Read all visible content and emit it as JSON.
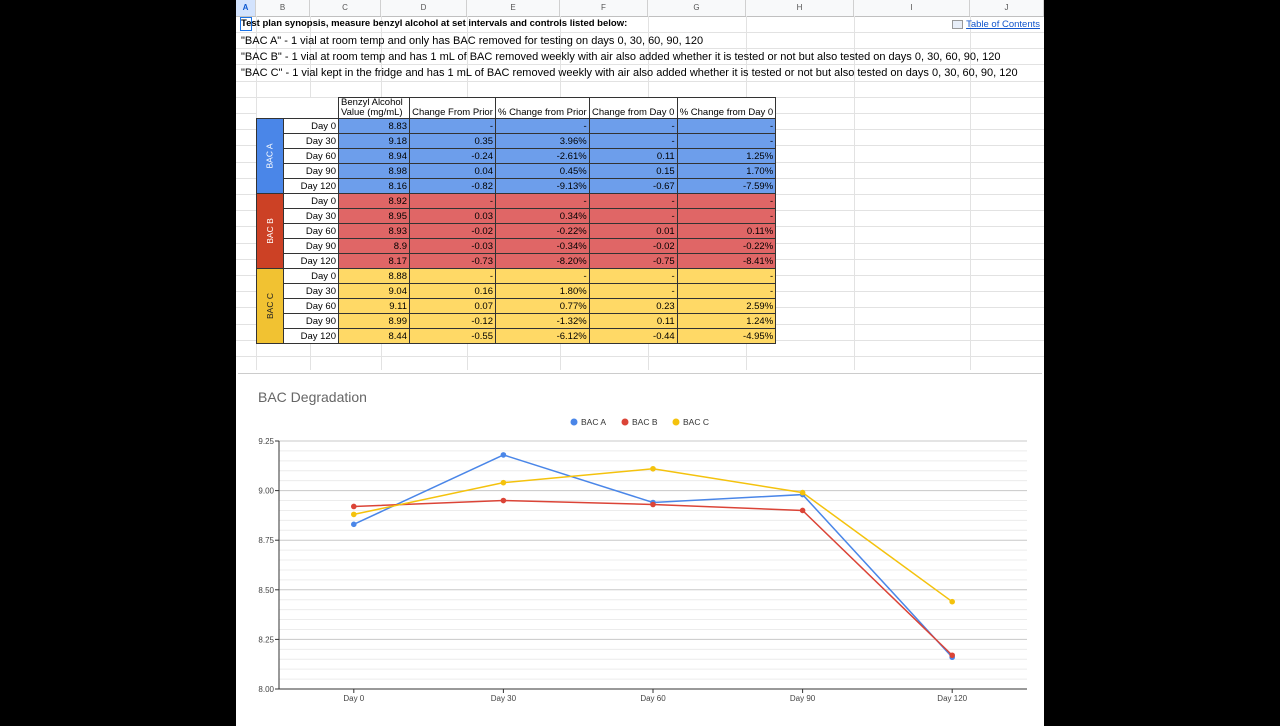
{
  "columns": [
    "A",
    "B",
    "C",
    "D",
    "E",
    "F",
    "G",
    "H",
    "I",
    "J"
  ],
  "intro": {
    "lines": [
      "Test plan synopsis, measure benzyl alcohol at set intervals and controls listed below:",
      "\"BAC A\" - 1 vial at room temp and only has BAC removed for testing on days 0, 30, 60, 90, 120",
      "\"BAC B\" - 1 vial at room temp and has 1 mL of BAC removed weekly with air also added whether it is tested or not but also tested on days 0, 30, 60, 90, 120",
      "\"BAC C\" - 1 vial kept in the fridge and has 1 mL of BAC removed weekly with air also added whether it is tested or not but also tested on days 0, 30, 60, 90, 120"
    ],
    "toc_link": "Table of Contents"
  },
  "table": {
    "headers": [
      "Benzyl Alcohol Value (mg/mL)",
      "Change From Prior",
      "% Change from Prior",
      "Change from Day 0",
      "% Change from Day 0"
    ],
    "groups": [
      {
        "label": "BAC A",
        "rows": [
          [
            "Day 0",
            "8.83",
            "-",
            "-",
            "-",
            "-"
          ],
          [
            "Day 30",
            "9.18",
            "0.35",
            "3.96%",
            "-",
            "-"
          ],
          [
            "Day 60",
            "8.94",
            "-0.24",
            "-2.61%",
            "0.11",
            "1.25%"
          ],
          [
            "Day 90",
            "8.98",
            "0.04",
            "0.45%",
            "0.15",
            "1.70%"
          ],
          [
            "Day 120",
            "8.16",
            "-0.82",
            "-9.13%",
            "-0.67",
            "-7.59%"
          ]
        ]
      },
      {
        "label": "BAC B",
        "rows": [
          [
            "Day 0",
            "8.92",
            "-",
            "-",
            "-",
            "-"
          ],
          [
            "Day 30",
            "8.95",
            "0.03",
            "0.34%",
            "-",
            "-"
          ],
          [
            "Day 60",
            "8.93",
            "-0.02",
            "-0.22%",
            "0.01",
            "0.11%"
          ],
          [
            "Day 90",
            "8.9",
            "-0.03",
            "-0.34%",
            "-0.02",
            "-0.22%"
          ],
          [
            "Day 120",
            "8.17",
            "-0.73",
            "-8.20%",
            "-0.75",
            "-8.41%"
          ]
        ]
      },
      {
        "label": "BAC C",
        "rows": [
          [
            "Day 0",
            "8.88",
            "-",
            "-",
            "-",
            "-"
          ],
          [
            "Day 30",
            "9.04",
            "0.16",
            "1.80%",
            "-",
            "-"
          ],
          [
            "Day 60",
            "9.11",
            "0.07",
            "0.77%",
            "0.23",
            "2.59%"
          ],
          [
            "Day 90",
            "8.99",
            "-0.12",
            "-1.32%",
            "0.11",
            "1.24%"
          ],
          [
            "Day 120",
            "8.44",
            "-0.55",
            "-6.12%",
            "-0.44",
            "-4.95%"
          ]
        ]
      }
    ]
  },
  "chart_data": {
    "type": "line",
    "title": "BAC Degradation",
    "xlabel": "",
    "ylabel": "",
    "categories": [
      "Day 0",
      "Day 30",
      "Day 60",
      "Day 90",
      "Day 120"
    ],
    "ylim": [
      8.0,
      9.25
    ],
    "yticks": [
      "8.00",
      "8.25",
      "8.50",
      "8.75",
      "9.00",
      "9.25"
    ],
    "legend_position": "top",
    "grid": true,
    "series": [
      {
        "name": "BAC A",
        "color": "#4a86e8",
        "values": [
          8.83,
          9.18,
          8.94,
          8.98,
          8.16
        ]
      },
      {
        "name": "BAC B",
        "color": "#db4437",
        "values": [
          8.92,
          8.95,
          8.93,
          8.9,
          8.17
        ]
      },
      {
        "name": "BAC C",
        "color": "#f4c20d",
        "values": [
          8.88,
          9.04,
          9.11,
          8.99,
          8.44
        ]
      }
    ]
  }
}
